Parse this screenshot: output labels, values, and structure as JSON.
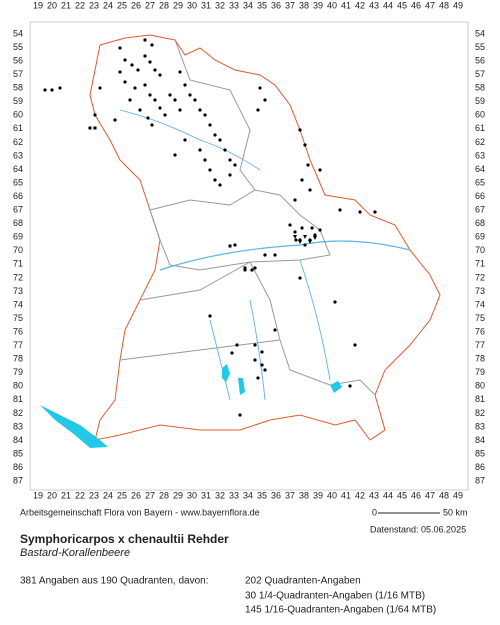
{
  "map": {
    "columns": [
      19,
      20,
      21,
      22,
      23,
      24,
      25,
      26,
      27,
      28,
      29,
      30,
      31,
      32,
      33,
      34,
      35,
      36,
      37,
      38,
      39,
      40,
      41,
      42,
      43,
      44,
      45,
      46,
      47,
      48,
      49
    ],
    "rows": [
      54,
      55,
      56,
      57,
      58,
      59,
      60,
      61,
      62,
      63,
      64,
      65,
      66,
      67,
      68,
      69,
      70,
      71,
      72,
      73,
      74,
      75,
      76,
      77,
      78,
      79,
      80,
      81,
      82,
      83,
      84,
      85,
      86,
      87
    ],
    "credit": "Arbeitsgemeinschaft Flora von Bayern - www.bayernflora.de",
    "scale_start": "0",
    "scale_end": "50 km",
    "date": "Datenstand: 05.06.2025",
    "title": "Symphoricarpos x chenaultii Rehder",
    "subtitle": "Bastard-Korallenbeere",
    "summary": "381 Angaben aus 190 Quadranten, davon:",
    "legend": [
      "202 Quadranten-Angaben",
      "30 1/4-Quadranten-Angaben (1/16 MTB)",
      "145 1/16-Quadranten-Angaben (1/64 MTB)"
    ]
  }
}
